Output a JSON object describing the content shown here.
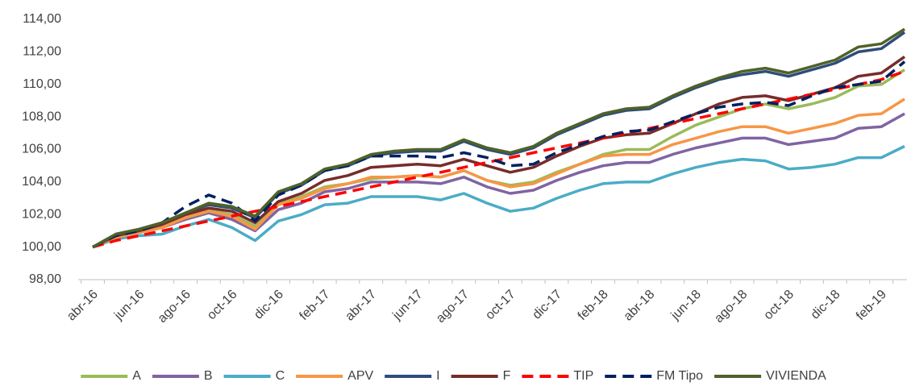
{
  "chart_data": {
    "type": "line",
    "categories": [
      "abr-16",
      null,
      "jun-16",
      null,
      "ago-16",
      null,
      "oct-16",
      null,
      "dic-16",
      null,
      "feb-17",
      null,
      "abr-17",
      null,
      "jun-17",
      null,
      "ago-17",
      null,
      "oct-17",
      null,
      "dic-17",
      null,
      "feb-18",
      null,
      "abr-18",
      null,
      "jun-18",
      null,
      "ago-18",
      null,
      "oct-18",
      null,
      "dic-18",
      null,
      "feb-19",
      null
    ],
    "ylim": [
      98,
      114
    ],
    "yticks": [
      {
        "value": 98,
        "label": "98,00"
      },
      {
        "value": 100,
        "label": "100,00"
      },
      {
        "value": 102,
        "label": "102,00"
      },
      {
        "value": 104,
        "label": "104,00"
      },
      {
        "value": 106,
        "label": "106,00"
      },
      {
        "value": 108,
        "label": "108,00"
      },
      {
        "value": 110,
        "label": "110,00"
      },
      {
        "value": 112,
        "label": "112,00"
      },
      {
        "value": 114,
        "label": "114,00"
      }
    ],
    "legend": "bottom",
    "series": [
      {
        "name": "A",
        "color": "#9bbb59",
        "dashed": false,
        "values": [
          100,
          100.7,
          101.0,
          101.3,
          101.9,
          102.3,
          102.0,
          101.3,
          102.7,
          103.1,
          103.7,
          103.9,
          104.2,
          104.3,
          104.4,
          104.3,
          104.7,
          104.1,
          103.8,
          104.0,
          104.6,
          105.1,
          105.7,
          106.0,
          106.0,
          106.8,
          107.5,
          108.0,
          108.5,
          108.8,
          108.5,
          108.8,
          109.2,
          109.9,
          110.0,
          110.9
        ]
      },
      {
        "name": "B",
        "color": "#8064a2",
        "dashed": false,
        "values": [
          100,
          100.6,
          100.9,
          101.2,
          101.7,
          102.1,
          101.7,
          101.0,
          102.3,
          102.7,
          103.4,
          103.6,
          104.0,
          104.0,
          104.0,
          103.9,
          104.3,
          103.7,
          103.3,
          103.5,
          104.1,
          104.6,
          105.0,
          105.2,
          105.2,
          105.7,
          106.1,
          106.4,
          106.7,
          106.7,
          106.3,
          106.5,
          106.7,
          107.3,
          107.4,
          108.2
        ]
      },
      {
        "name": "C",
        "color": "#4bacc6",
        "dashed": false,
        "values": [
          100,
          100.5,
          100.7,
          100.8,
          101.3,
          101.7,
          101.2,
          100.4,
          101.6,
          102.0,
          102.6,
          102.7,
          103.1,
          103.1,
          103.1,
          102.9,
          103.3,
          102.7,
          102.2,
          102.4,
          103.0,
          103.5,
          103.9,
          104.0,
          104.0,
          104.5,
          104.9,
          105.2,
          105.4,
          105.3,
          104.8,
          104.9,
          105.1,
          105.5,
          105.5,
          106.2
        ]
      },
      {
        "name": "APV",
        "color": "#f79646",
        "dashed": false,
        "values": [
          100,
          100.6,
          100.9,
          101.2,
          101.8,
          102.2,
          101.9,
          101.1,
          102.6,
          103.0,
          103.6,
          103.9,
          104.3,
          104.3,
          104.4,
          104.3,
          104.7,
          104.1,
          103.7,
          103.9,
          104.5,
          105.1,
          105.6,
          105.7,
          105.7,
          106.3,
          106.7,
          107.1,
          107.4,
          107.4,
          107.0,
          107.3,
          107.6,
          108.1,
          108.2,
          109.1
        ]
      },
      {
        "name": "I",
        "color": "#2e4d7b",
        "dashed": false,
        "values": [
          100,
          100.8,
          101.1,
          101.5,
          102.1,
          102.6,
          102.4,
          101.8,
          103.3,
          103.8,
          104.7,
          105.0,
          105.6,
          105.8,
          105.9,
          105.9,
          106.5,
          106.0,
          105.7,
          106.1,
          106.9,
          107.5,
          108.1,
          108.4,
          108.5,
          109.2,
          109.8,
          110.3,
          110.6,
          110.8,
          110.5,
          110.9,
          111.3,
          112.0,
          112.2,
          113.2
        ]
      },
      {
        "name": "F",
        "color": "#772c2a",
        "dashed": false,
        "values": [
          100,
          100.7,
          101.0,
          101.4,
          102.0,
          102.4,
          102.2,
          101.5,
          102.8,
          103.3,
          104.1,
          104.4,
          104.9,
          105.0,
          105.1,
          105.0,
          105.4,
          105.0,
          104.6,
          104.9,
          105.6,
          106.2,
          106.7,
          106.9,
          107.0,
          107.6,
          108.2,
          108.8,
          109.2,
          109.3,
          109.0,
          109.4,
          109.8,
          110.5,
          110.7,
          111.7
        ]
      },
      {
        "name": "TIP",
        "color": "#ff0000",
        "dashed": true,
        "values": [
          100,
          100.4,
          100.7,
          101.0,
          101.3,
          101.6,
          101.9,
          102.2,
          102.5,
          102.8,
          103.1,
          103.4,
          103.7,
          104.0,
          104.3,
          104.6,
          104.9,
          105.2,
          105.5,
          105.8,
          106.1,
          106.4,
          106.7,
          107.0,
          107.3,
          107.6,
          107.9,
          108.2,
          108.5,
          108.8,
          109.1,
          109.4,
          109.7,
          110.0,
          110.3,
          110.8
        ]
      },
      {
        "name": "FM Tipo",
        "color": "#002060",
        "dashed": true,
        "values": [
          100,
          100.7,
          101.0,
          101.5,
          102.5,
          103.2,
          102.7,
          101.6,
          103.2,
          103.8,
          104.7,
          105.0,
          105.6,
          105.6,
          105.6,
          105.5,
          105.8,
          105.5,
          105.0,
          105.1,
          105.8,
          106.3,
          106.8,
          107.1,
          107.2,
          107.7,
          108.2,
          108.6,
          108.8,
          108.9,
          108.7,
          109.3,
          109.8,
          110.0,
          110.2,
          111.4
        ]
      },
      {
        "name": "VIVIENDA",
        "color": "#4f6228",
        "dashed": false,
        "values": [
          100,
          100.8,
          101.1,
          101.5,
          102.1,
          102.7,
          102.5,
          101.9,
          103.4,
          103.9,
          104.8,
          105.1,
          105.7,
          105.9,
          106.0,
          106.0,
          106.6,
          106.1,
          105.8,
          106.2,
          107.0,
          107.6,
          108.2,
          108.5,
          108.6,
          109.3,
          109.9,
          110.4,
          110.8,
          111.0,
          110.7,
          111.1,
          111.5,
          112.3,
          112.5,
          113.4
        ]
      }
    ]
  }
}
